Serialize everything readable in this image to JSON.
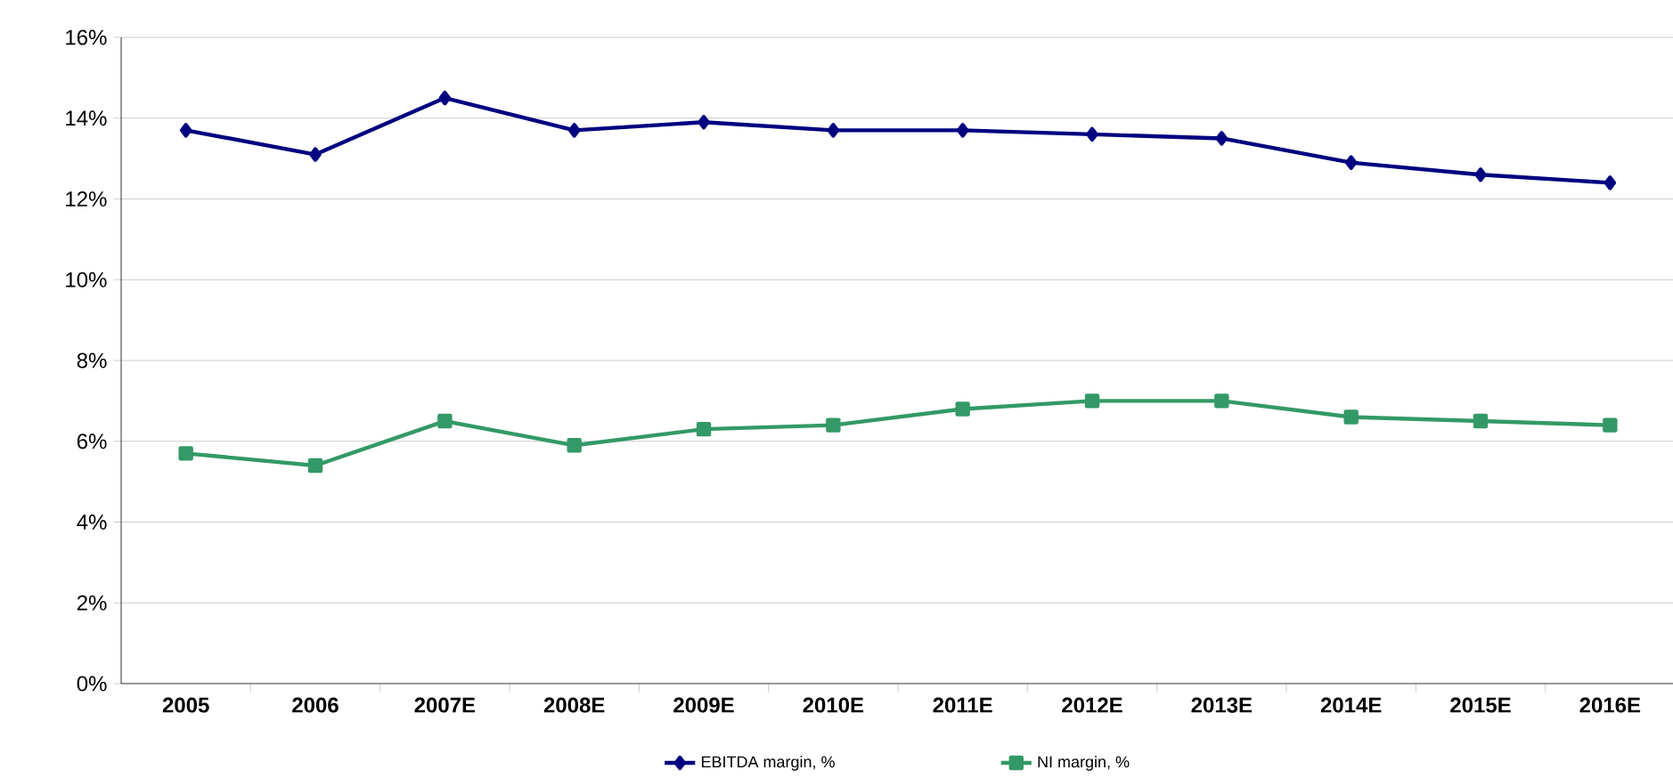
{
  "chart_data": {
    "type": "line",
    "categories": [
      "2005",
      "2006",
      "2007E",
      "2008E",
      "2009E",
      "2010E",
      "2011E",
      "2012E",
      "2013E",
      "2014E",
      "2015E",
      "2016E"
    ],
    "series": [
      {
        "name": "EBITDA margin, %",
        "color": "#000080",
        "marker": "diamond",
        "values": [
          13.7,
          13.1,
          14.5,
          13.7,
          13.9,
          13.7,
          13.7,
          13.6,
          13.5,
          12.9,
          12.6,
          12.4
        ]
      },
      {
        "name": "NI margin, %",
        "color": "#339966",
        "marker": "square",
        "values": [
          5.7,
          5.4,
          6.5,
          5.9,
          6.3,
          6.4,
          6.8,
          7.0,
          7.0,
          6.6,
          6.5,
          6.4
        ]
      }
    ],
    "ylim": [
      0,
      16
    ],
    "yticks": [
      {
        "value": 0,
        "label": "0%"
      },
      {
        "value": 2,
        "label": "2%"
      },
      {
        "value": 4,
        "label": "4%"
      },
      {
        "value": 6,
        "label": "6%"
      },
      {
        "value": 8,
        "label": "8%"
      },
      {
        "value": 10,
        "label": "10%"
      },
      {
        "value": 12,
        "label": "12%"
      },
      {
        "value": 14,
        "label": "14%"
      },
      {
        "value": 16,
        "label": "16%"
      }
    ],
    "grid": "y",
    "legend": "bottom",
    "line_style": "solid"
  }
}
